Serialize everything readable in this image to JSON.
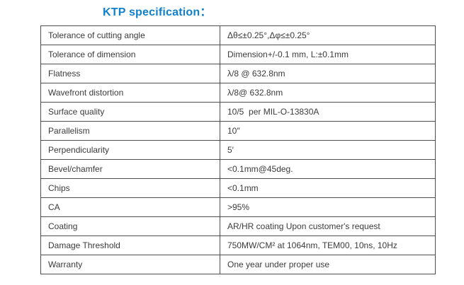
{
  "title": "KTP specification：",
  "table": {
    "rows": [
      {
        "label": "Tolerance of cutting angle",
        "value": "Δθ≤±0.25°,Δφ≤±0.25°"
      },
      {
        "label": "Tolerance of dimension",
        "value": "Dimension+/-0.1 mm, L:±0.1mm"
      },
      {
        "label": "Flatness",
        "value": "λ/8 @ 632.8nm"
      },
      {
        "label": "Wavefront distortion",
        "value": "λ/8@ 632.8nm"
      },
      {
        "label": "Surface quality",
        "value": "10/5  per MIL-O-13830A"
      },
      {
        "label": "Parallelism",
        "value": "10″"
      },
      {
        "label": "Perpendicularity",
        "value": "5′"
      },
      {
        "label": "Bevel/chamfer",
        "value": "<0.1mm@45deg."
      },
      {
        "label": "Chips",
        "value": "<0.1mm"
      },
      {
        "label": "CA",
        "value": ">95%"
      },
      {
        "label": "Coating",
        "value": "AR/HR coating Upon customer's request"
      },
      {
        "label": "Damage Threshold",
        "value": "750MW/CM² at 1064nm, TEM00, 10ns, 10Hz"
      },
      {
        "label": "Warranty",
        "value": "One year under proper use"
      }
    ]
  }
}
